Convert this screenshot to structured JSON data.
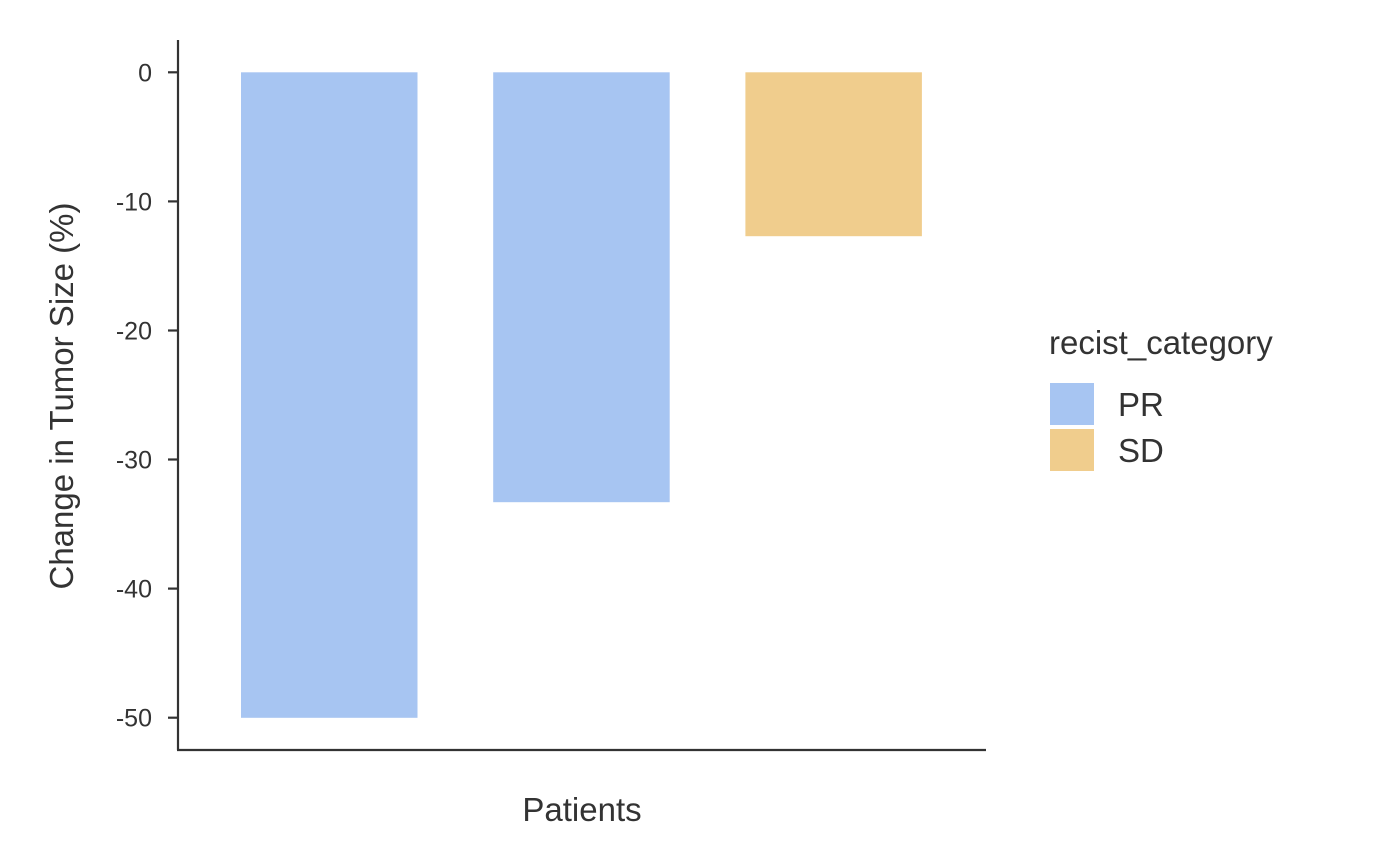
{
  "chart_data": {
    "type": "bar",
    "title": "",
    "xlabel": "Patients",
    "ylabel": "Change in Tumor Size (%)",
    "ylim": [
      -52.5,
      2.5
    ],
    "yticks": [
      0,
      -10,
      -20,
      -30,
      -40,
      -50
    ],
    "grid": false,
    "legend_position": "right",
    "legend_title": "recist_category",
    "legend": [
      {
        "label": "PR",
        "color": "#A7C5F2"
      },
      {
        "label": "SD",
        "color": "#F0CD8D"
      }
    ],
    "bars": [
      {
        "value": -50.0,
        "category": "PR"
      },
      {
        "value": -33.3,
        "category": "PR"
      },
      {
        "value": -12.7,
        "category": "SD"
      }
    ]
  }
}
